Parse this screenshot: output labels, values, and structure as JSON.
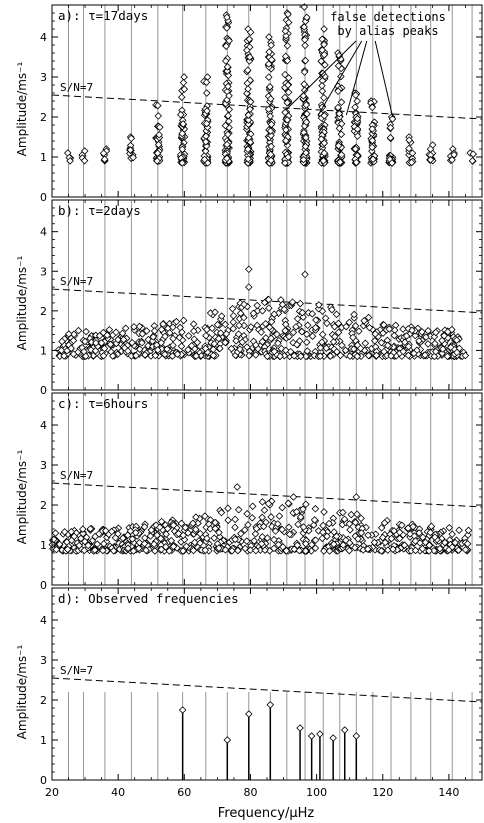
{
  "figure": {
    "x_axis_label": "Frequency/μHz",
    "y_axis_label": "Amplitude/ms⁻¹",
    "snr_label": "S/N=7",
    "annotation": [
      "false detections",
      "by alias peaks"
    ]
  },
  "chart_data": [
    {
      "type": "scatter",
      "panel_label": "a): τ=17days",
      "xlim": [
        20,
        150
      ],
      "ylim": [
        0,
        4.8
      ],
      "x_ticks": [
        20,
        40,
        60,
        80,
        100,
        120,
        140
      ],
      "y_ticks": [
        0,
        1,
        2,
        3,
        4
      ],
      "grid": false,
      "threshold_line": {
        "label": "S/N=7",
        "y_at_x20": 2.55,
        "y_at_x150": 1.95,
        "style": "dashed"
      },
      "vertical_lines_x": [
        25,
        29.5,
        36,
        44,
        52,
        59.5,
        66.5,
        73,
        79.5,
        86,
        91,
        96.5,
        102,
        107,
        112,
        117,
        122.5,
        128.5,
        134.5,
        141,
        147
      ],
      "scatter_description": "clusters of diamond-shaped points at the vertical lines, amplitudes mostly 0.9–2.5",
      "cluster_columns": [
        {
          "x": 25,
          "y_min": 0.9,
          "y_max": 1.1
        },
        {
          "x": 29.5,
          "y_min": 0.9,
          "y_max": 1.15
        },
        {
          "x": 36,
          "y_min": 0.9,
          "y_max": 1.2
        },
        {
          "x": 44,
          "y_min": 0.9,
          "y_max": 1.5
        },
        {
          "x": 52,
          "y_min": 0.9,
          "y_max": 2.3
        },
        {
          "x": 59.5,
          "y_min": 0.85,
          "y_max": 3.0
        },
        {
          "x": 66.5,
          "y_min": 0.85,
          "y_max": 3.0
        },
        {
          "x": 73,
          "y_min": 0.85,
          "y_max": 4.55
        },
        {
          "x": 79.5,
          "y_min": 0.85,
          "y_max": 4.2
        },
        {
          "x": 86,
          "y_min": 0.85,
          "y_max": 4.0
        },
        {
          "x": 91,
          "y_min": 0.85,
          "y_max": 4.6
        },
        {
          "x": 96.5,
          "y_min": 0.85,
          "y_max": 4.75
        },
        {
          "x": 102,
          "y_min": 0.85,
          "y_max": 4.2
        },
        {
          "x": 107,
          "y_min": 0.85,
          "y_max": 3.6
        },
        {
          "x": 112,
          "y_min": 0.85,
          "y_max": 2.6
        },
        {
          "x": 117,
          "y_min": 0.85,
          "y_max": 2.4
        },
        {
          "x": 122.5,
          "y_min": 0.85,
          "y_max": 2.0
        },
        {
          "x": 128.5,
          "y_min": 0.85,
          "y_max": 1.5
        },
        {
          "x": 134.5,
          "y_min": 0.9,
          "y_max": 1.3
        },
        {
          "x": 141,
          "y_min": 0.9,
          "y_max": 1.2
        },
        {
          "x": 147,
          "y_min": 0.9,
          "y_max": 1.1
        }
      ],
      "annotation_targets": [
        {
          "x": 91,
          "y": 2.2
        },
        {
          "x": 100.5,
          "y": 2.05
        },
        {
          "x": 109,
          "y": 2.05
        },
        {
          "x": 123,
          "y": 2.0
        }
      ]
    },
    {
      "type": "scatter",
      "panel_label": "b): τ=2days",
      "xlim": [
        20,
        150
      ],
      "ylim": [
        0,
        4.8
      ],
      "x_ticks": [
        20,
        40,
        60,
        80,
        100,
        120,
        140
      ],
      "y_ticks": [
        0,
        1,
        2,
        3,
        4
      ],
      "grid": false,
      "threshold_line": {
        "label": "S/N=7",
        "y_at_x20": 2.55,
        "y_at_x150": 1.95,
        "style": "dashed"
      },
      "vertical_lines_x": [
        25,
        29.5,
        36,
        44,
        52,
        59.5,
        66.5,
        73,
        79.5,
        86,
        91,
        96.5,
        102,
        107,
        112,
        117,
        122.5,
        128.5,
        134.5,
        141,
        147
      ],
      "scatter_description": "dense band of diamond points from ~30 to ~145 μHz at amplitudes 0.9–2.3, few outliers near 3",
      "band": {
        "x_min": 22,
        "x_max": 145,
        "y_min": 0.85,
        "y_max": 2.3
      },
      "outliers": [
        {
          "x": 79.5,
          "y": 3.05
        },
        {
          "x": 96.5,
          "y": 2.92
        },
        {
          "x": 79.5,
          "y": 2.6
        }
      ]
    },
    {
      "type": "scatter",
      "panel_label": "c): τ=6hours",
      "xlim": [
        20,
        150
      ],
      "ylim": [
        0,
        4.8
      ],
      "x_ticks": [
        20,
        40,
        60,
        80,
        100,
        120,
        140
      ],
      "y_ticks": [
        0,
        1,
        2,
        3,
        4
      ],
      "grid": false,
      "threshold_line": {
        "label": "S/N=7",
        "y_at_x20": 2.55,
        "y_at_x150": 1.95,
        "style": "dashed"
      },
      "vertical_lines_x": [
        25,
        29.5,
        36,
        44,
        52,
        59.5,
        66.5,
        73,
        79.5,
        86,
        91,
        96.5,
        102,
        107,
        112,
        117,
        122.5,
        128.5,
        134.5,
        141,
        147
      ],
      "scatter_description": "dense band of diamond points from ~20 to ~145 μHz at amplitudes 0.85–2.4",
      "band": {
        "x_min": 20,
        "x_max": 146,
        "y_min": 0.85,
        "y_max": 2.1
      },
      "outliers": [
        {
          "x": 76,
          "y": 2.45
        },
        {
          "x": 93,
          "y": 2.2
        },
        {
          "x": 112,
          "y": 2.2
        }
      ]
    },
    {
      "type": "bar",
      "panel_label": "d): Observed frequencies",
      "xlim": [
        20,
        150
      ],
      "ylim": [
        0,
        4.8
      ],
      "x_ticks": [
        20,
        40,
        60,
        80,
        100,
        120,
        140
      ],
      "y_ticks": [
        0,
        1,
        2,
        3,
        4
      ],
      "grid": false,
      "threshold_line": {
        "label": "S/N=7",
        "y_at_x20": 2.55,
        "y_at_x150": 1.95,
        "style": "dashed"
      },
      "vertical_lines_x": [
        25,
        29.5,
        36,
        44,
        52,
        59.5,
        66.5,
        73,
        79.5,
        86,
        91,
        96.5,
        102,
        107,
        112,
        117,
        122.5,
        128.5,
        134.5,
        141,
        147
      ],
      "vertical_line_top": 2.2,
      "stems": [
        {
          "x": 59.5,
          "y": 1.75
        },
        {
          "x": 73,
          "y": 1.0
        },
        {
          "x": 79.5,
          "y": 1.65
        },
        {
          "x": 86,
          "y": 1.88
        },
        {
          "x": 95,
          "y": 1.3
        },
        {
          "x": 98.5,
          "y": 1.1
        },
        {
          "x": 101,
          "y": 1.15
        },
        {
          "x": 105,
          "y": 1.05
        },
        {
          "x": 108.5,
          "y": 1.25
        },
        {
          "x": 112,
          "y": 1.1
        }
      ]
    }
  ]
}
